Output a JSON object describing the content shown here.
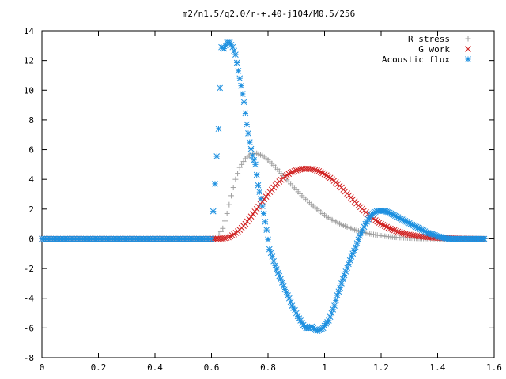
{
  "chart_data": {
    "type": "scatter",
    "title": "m2/n1.5/q2.0/r-+.40-j104/M0.5/256",
    "xlabel": "",
    "ylabel": "",
    "xlim": [
      0,
      1.6
    ],
    "ylim": [
      -8,
      14
    ],
    "x_ticks": [
      0,
      0.2,
      0.4,
      0.6,
      0.8,
      1,
      1.2,
      1.4,
      1.6
    ],
    "x_tick_labels": [
      "0",
      "0.2",
      "0.4",
      "0.6",
      "0.8",
      "1",
      "1.2",
      "1.4",
      "1.6"
    ],
    "y_ticks": [
      -8,
      -6,
      -4,
      -2,
      0,
      2,
      4,
      6,
      8,
      10,
      12,
      14
    ],
    "y_tick_labels": [
      "-8",
      "-6",
      "-4",
      "-2",
      "0",
      "2",
      "4",
      "6",
      "8",
      "10",
      "12",
      "14"
    ],
    "grid": false,
    "legend_position": "top-right",
    "series": [
      {
        "name": "R stress",
        "marker": "plus",
        "color": "#a0a0a0",
        "x": [
          0,
          0.05,
          0.1,
          0.15,
          0.2,
          0.25,
          0.3,
          0.35,
          0.4,
          0.45,
          0.5,
          0.55,
          0.6,
          0.62,
          0.64,
          0.655,
          0.67,
          0.685,
          0.7,
          0.72,
          0.74,
          0.76,
          0.78,
          0.8,
          0.82,
          0.84,
          0.86,
          0.88,
          0.9,
          0.92,
          0.94,
          0.96,
          0.98,
          1.0,
          1.02,
          1.04,
          1.06,
          1.08,
          1.1,
          1.12,
          1.14,
          1.16,
          1.18,
          1.2,
          1.22,
          1.24,
          1.26,
          1.28,
          1.3,
          1.35,
          1.4,
          1.45,
          1.5,
          1.55,
          1.57
        ],
        "y": [
          0,
          0,
          0,
          0,
          0,
          0,
          0,
          0,
          0,
          0,
          0,
          0,
          0,
          0.05,
          0.7,
          1.7,
          2.9,
          4.0,
          4.8,
          5.4,
          5.7,
          5.75,
          5.6,
          5.3,
          4.95,
          4.55,
          4.1,
          3.7,
          3.3,
          2.9,
          2.55,
          2.2,
          1.9,
          1.6,
          1.35,
          1.15,
          0.95,
          0.8,
          0.65,
          0.52,
          0.42,
          0.34,
          0.27,
          0.21,
          0.16,
          0.12,
          0.09,
          0.07,
          0.05,
          0.02,
          0.01,
          0,
          0,
          0,
          0
        ]
      },
      {
        "name": "G work",
        "marker": "cross",
        "color": "#d02020",
        "x": [
          0,
          0.05,
          0.1,
          0.15,
          0.2,
          0.25,
          0.3,
          0.35,
          0.4,
          0.45,
          0.5,
          0.55,
          0.6,
          0.64,
          0.66,
          0.68,
          0.7,
          0.72,
          0.74,
          0.76,
          0.78,
          0.8,
          0.82,
          0.84,
          0.86,
          0.88,
          0.9,
          0.92,
          0.94,
          0.96,
          0.98,
          1.0,
          1.02,
          1.04,
          1.06,
          1.08,
          1.1,
          1.12,
          1.14,
          1.16,
          1.18,
          1.2,
          1.22,
          1.24,
          1.26,
          1.28,
          1.3,
          1.32,
          1.34,
          1.36,
          1.38,
          1.4,
          1.42,
          1.44,
          1.46,
          1.48,
          1.5,
          1.52,
          1.54,
          1.56
        ],
        "y": [
          0,
          0,
          0,
          0,
          0,
          0,
          0,
          0,
          0,
          0,
          0,
          0,
          0,
          0.02,
          0.1,
          0.3,
          0.6,
          1.0,
          1.5,
          2.0,
          2.5,
          3.0,
          3.45,
          3.85,
          4.2,
          4.45,
          4.6,
          4.7,
          4.72,
          4.68,
          4.55,
          4.35,
          4.1,
          3.8,
          3.45,
          3.05,
          2.65,
          2.25,
          1.9,
          1.55,
          1.25,
          1.0,
          0.8,
          0.62,
          0.48,
          0.37,
          0.28,
          0.21,
          0.16,
          0.12,
          0.09,
          0.07,
          0.05,
          0.04,
          0.03,
          0.02,
          0.01,
          0.01,
          0,
          0
        ]
      },
      {
        "name": "Acoustic flux",
        "marker": "star",
        "color": "#1e90e0",
        "x": [
          0,
          0.05,
          0.1,
          0.15,
          0.2,
          0.25,
          0.3,
          0.35,
          0.4,
          0.45,
          0.5,
          0.55,
          0.6,
          0.625,
          0.635,
          0.645,
          0.655,
          0.665,
          0.675,
          0.685,
          0.695,
          0.705,
          0.715,
          0.725,
          0.735,
          0.745,
          0.755,
          0.765,
          0.775,
          0.785,
          0.795,
          0.805,
          0.815,
          0.825,
          0.835,
          0.845,
          0.855,
          0.865,
          0.875,
          0.885,
          0.895,
          0.905,
          0.915,
          0.925,
          0.935,
          0.945,
          0.955,
          0.965,
          0.975,
          0.985,
          0.995,
          1.005,
          1.015,
          1.025,
          1.035,
          1.045,
          1.055,
          1.065,
          1.075,
          1.085,
          1.095,
          1.105,
          1.115,
          1.125,
          1.135,
          1.145,
          1.155,
          1.165,
          1.175,
          1.185,
          1.195,
          1.205,
          1.215,
          1.225,
          1.235,
          1.245,
          1.255,
          1.265,
          1.275,
          1.285,
          1.295,
          1.305,
          1.315,
          1.325,
          1.335,
          1.345,
          1.355,
          1.365,
          1.375,
          1.385,
          1.395,
          1.405,
          1.415,
          1.425,
          1.435,
          1.445,
          1.455,
          1.465,
          1.475,
          1.485,
          1.495,
          1.505,
          1.515,
          1.525,
          1.535,
          1.545,
          1.555,
          1.565
        ],
        "y": [
          0,
          0,
          0,
          0,
          0,
          0,
          0,
          0,
          0,
          0,
          0,
          0,
          0,
          7.4,
          12.9,
          12.8,
          13.2,
          13.2,
          12.9,
          12.4,
          11.3,
          10.3,
          9.2,
          7.7,
          6.5,
          5.6,
          5.0,
          3.6,
          2.7,
          1.7,
          0.6,
          -0.7,
          -1.2,
          -1.8,
          -2.3,
          -2.7,
          -3.2,
          -3.6,
          -4.0,
          -4.5,
          -4.8,
          -5.2,
          -5.5,
          -5.8,
          -6.0,
          -6.0,
          -5.9,
          -6.1,
          -6.2,
          -6.1,
          -6.0,
          -5.7,
          -5.5,
          -5.0,
          -4.5,
          -3.8,
          -3.3,
          -2.7,
          -2.2,
          -1.7,
          -1.2,
          -0.8,
          -0.3,
          0.2,
          0.6,
          1.0,
          1.3,
          1.6,
          1.75,
          1.85,
          1.9,
          1.9,
          1.85,
          1.8,
          1.7,
          1.6,
          1.5,
          1.4,
          1.3,
          1.2,
          1.1,
          1.0,
          0.9,
          0.8,
          0.7,
          0.6,
          0.5,
          0.4,
          0.35,
          0.3,
          0.2,
          0.15,
          0.1,
          0.05,
          0.02,
          0,
          0,
          0,
          0,
          0,
          0,
          0,
          0,
          0,
          0,
          0,
          0,
          0
        ]
      }
    ]
  }
}
